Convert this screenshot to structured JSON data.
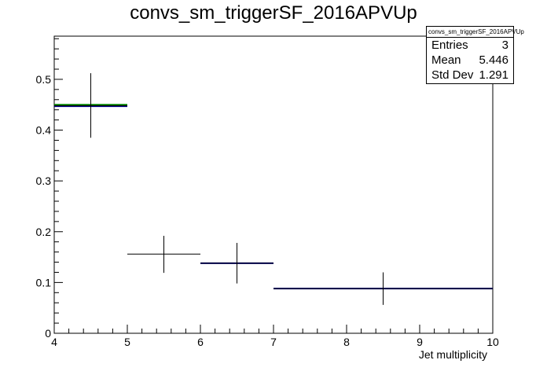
{
  "chart_data": {
    "type": "scatter",
    "title": "convs_sm_triggerSF_2016APVUp",
    "xlabel": "Jet multiplicity",
    "ylabel": "",
    "xlim": [
      4,
      10
    ],
    "ylim": [
      0,
      0.585
    ],
    "xticks": [
      "4",
      "5",
      "6",
      "7",
      "8",
      "9",
      "10"
    ],
    "yticks": [
      "0",
      "0.1",
      "0.2",
      "0.3",
      "0.4",
      "0.5"
    ],
    "grid": false,
    "stats_box": {
      "name": "convs_sm_triggerSF_2016APVUp",
      "rows": [
        {
          "label": "Entries",
          "value": "3"
        },
        {
          "label": "Mean",
          "value": "5.446"
        },
        {
          "label": "Std Dev",
          "value": "1.291"
        }
      ]
    },
    "histogram_lines": [
      {
        "xlo": 4,
        "xhi": 5,
        "y": 0.447,
        "color": "#00008b"
      },
      {
        "xlo": 4,
        "xhi": 5,
        "y": 0.45,
        "color": "#008000"
      },
      {
        "xlo": 6,
        "xhi": 7,
        "y": 0.138,
        "color": "#00008b"
      },
      {
        "xlo": 7,
        "xhi": 10,
        "y": 0.088,
        "color": "#00008b"
      }
    ],
    "points": [
      {
        "x": 4.5,
        "y": 0.448,
        "xlo": 4,
        "xhi": 5,
        "ylo": 0.385,
        "yhi": 0.512
      },
      {
        "x": 5.5,
        "y": 0.156,
        "xlo": 5,
        "xhi": 6,
        "ylo": 0.119,
        "yhi": 0.192
      },
      {
        "x": 6.5,
        "y": 0.138,
        "xlo": 6,
        "xhi": 7,
        "ylo": 0.098,
        "yhi": 0.178
      },
      {
        "x": 8.5,
        "y": 0.088,
        "xlo": 7,
        "xhi": 10,
        "ylo": 0.056,
        "yhi": 0.12
      }
    ]
  }
}
